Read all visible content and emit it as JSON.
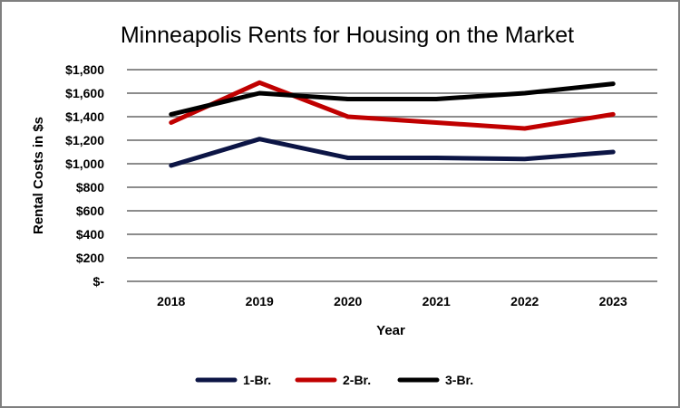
{
  "chart_data": {
    "type": "line",
    "title": "Minneapolis Rents for Housing on the Market",
    "xlabel": "Year",
    "ylabel": "Rental Costs in $s",
    "categories": [
      "2018",
      "2019",
      "2020",
      "2021",
      "2022",
      "2023"
    ],
    "ylim": [
      0,
      1800
    ],
    "y_ticks": [
      0,
      200,
      400,
      600,
      800,
      1000,
      1200,
      1400,
      1600,
      1800
    ],
    "y_tick_labels": [
      "$-",
      "$200",
      "$400",
      "$600",
      "$800",
      "$1,000",
      "$1,200",
      "$1,400",
      "$1,600",
      "$1,800"
    ],
    "grid": true,
    "legend_position": "bottom",
    "series": [
      {
        "name": "1-Br.",
        "color": "#0c1545",
        "values": [
          985,
          1210,
          1050,
          1050,
          1040,
          1100
        ]
      },
      {
        "name": "2-Br.",
        "color": "#c00000",
        "values": [
          1350,
          1690,
          1400,
          1350,
          1300,
          1420
        ]
      },
      {
        "name": "3-Br.",
        "color": "#000000",
        "values": [
          1420,
          1600,
          1550,
          1550,
          1600,
          1680
        ]
      }
    ]
  }
}
